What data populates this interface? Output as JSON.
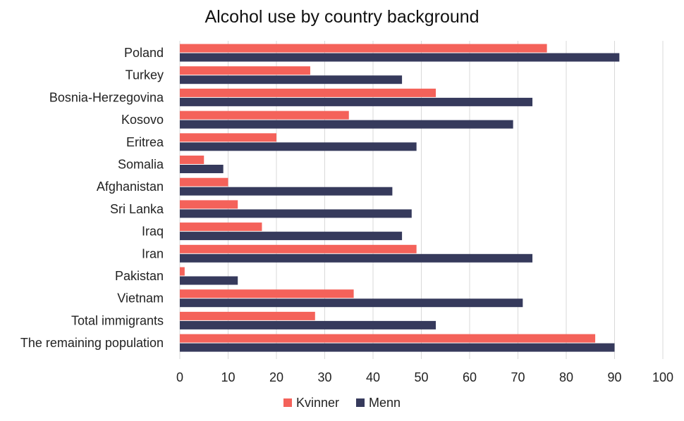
{
  "chart_data": {
    "type": "bar",
    "orientation": "horizontal",
    "title": "Alcohol use by country background",
    "xlabel": "",
    "ylabel": "",
    "xlim": [
      0,
      100
    ],
    "xticks": [
      0,
      10,
      20,
      30,
      40,
      50,
      60,
      70,
      80,
      90,
      100
    ],
    "grid": "vertical",
    "legend_position": "bottom",
    "categories": [
      "Poland",
      "Turkey",
      "Bosnia-Herzegovina",
      "Kosovo",
      "Eritrea",
      "Somalia",
      "Afghanistan",
      "Sri Lanka",
      "Iraq",
      "Iran",
      "Pakistan",
      "Vietnam",
      "Total immigrants",
      "The remaining population"
    ],
    "series": [
      {
        "name": "Kvinner",
        "color": "#f4625a",
        "values": [
          76,
          27,
          53,
          35,
          20,
          5,
          10,
          12,
          17,
          49,
          1,
          36,
          28,
          86
        ]
      },
      {
        "name": "Menn",
        "color": "#363a5c",
        "values": [
          91,
          46,
          73,
          69,
          49,
          9,
          44,
          48,
          46,
          73,
          12,
          71,
          53,
          90
        ]
      }
    ]
  }
}
